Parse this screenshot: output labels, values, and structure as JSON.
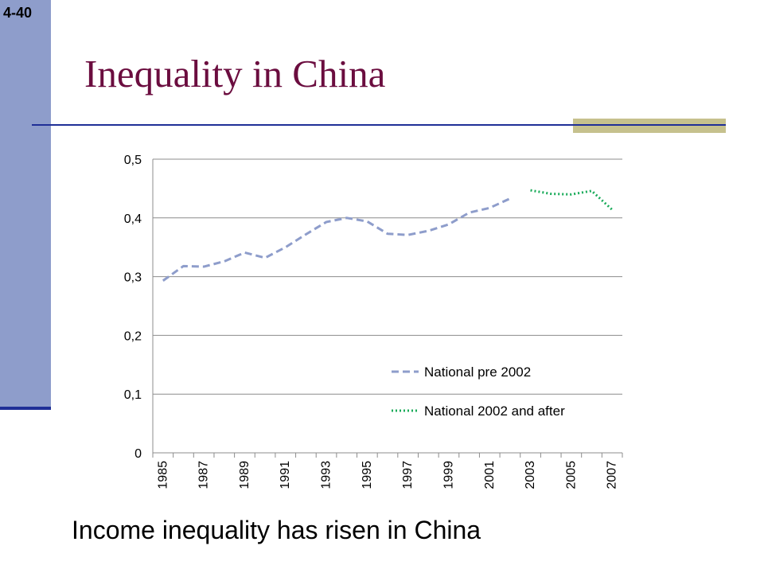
{
  "slide": {
    "number": "4-40",
    "title": "Inequality in China",
    "caption": "Income inequality has risen in China"
  },
  "colors": {
    "sidebar": "#8e9dcb",
    "title": "#6b0d3f",
    "rule": "#1f2f97",
    "accent": "#c6c18d",
    "series_pre": "#8e9dcb",
    "series_post": "#1aab5a"
  },
  "chart_data": {
    "type": "line",
    "title": "",
    "xlabel": "",
    "ylabel": "",
    "ylim": [
      0,
      0.5
    ],
    "yticks": [
      "0",
      "0,1",
      "0,2",
      "0,3",
      "0,4",
      "0,5"
    ],
    "ytick_values": [
      0,
      0.1,
      0.2,
      0.3,
      0.4,
      0.5
    ],
    "xtick_labels": [
      "1985",
      "1987",
      "1989",
      "1991",
      "1993",
      "1995",
      "1997",
      "1999",
      "2001",
      "2003",
      "2005",
      "2007"
    ],
    "x": [
      1985,
      1986,
      1987,
      1988,
      1989,
      1990,
      1991,
      1992,
      1993,
      1994,
      1995,
      1996,
      1997,
      1998,
      1999,
      2000,
      2001,
      2002,
      2003,
      2004,
      2005,
      2006,
      2007
    ],
    "grid": "horizontal",
    "legend": "bottom-right",
    "series": [
      {
        "name": "National pre 2002",
        "style": "dashed",
        "x": [
          1985,
          1986,
          1987,
          1988,
          1989,
          1990,
          1991,
          1992,
          1993,
          1994,
          1995,
          1996,
          1997,
          1998,
          1999,
          2000,
          2001,
          2002
        ],
        "values": [
          0.293,
          0.318,
          0.317,
          0.326,
          0.341,
          0.332,
          0.35,
          0.372,
          0.393,
          0.4,
          0.394,
          0.373,
          0.371,
          0.378,
          0.389,
          0.409,
          0.417,
          0.433
        ]
      },
      {
        "name": "National 2002 and after",
        "style": "dotted",
        "x": [
          2003,
          2004,
          2005,
          2006,
          2007
        ],
        "values": [
          0.447,
          0.441,
          0.44,
          0.446,
          0.414
        ]
      }
    ]
  }
}
